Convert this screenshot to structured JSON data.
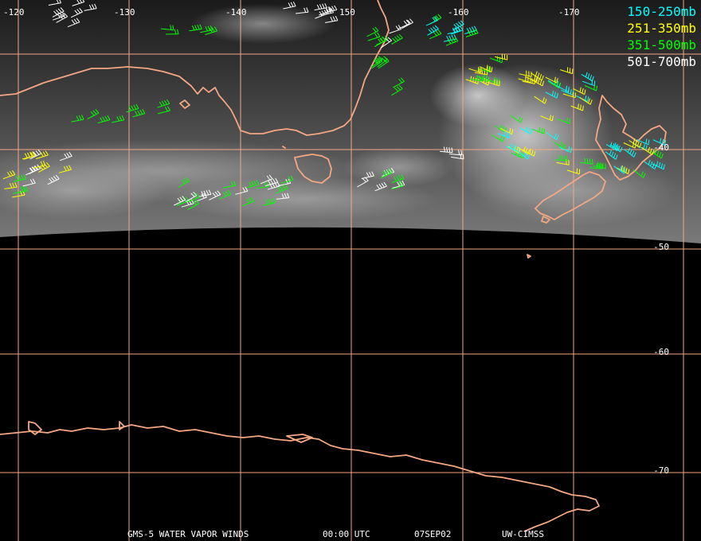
{
  "legend": [
    {
      "label": "150-250mb",
      "color": "#00ffff"
    },
    {
      "label": "251-350mb",
      "color": "#ffff00"
    },
    {
      "label": "351-500mb",
      "color": "#00ff00"
    },
    {
      "label": "501-700mb",
      "color": "#ffffff"
    }
  ],
  "longitude_labels": [
    "-120",
    "-130",
    "-140",
    "150",
    "-160",
    "-170"
  ],
  "latitude_labels": [
    "-40",
    "-50",
    "-60",
    "-70"
  ],
  "footer": {
    "product": "GMS-5 WATER VAPOR WINDS",
    "time": "00:00 UTC",
    "date": "07SEP02",
    "source": "UW-CIMSS"
  },
  "colors": {
    "background": "#000000",
    "grid": "#f4a783",
    "coastline": "#f4a783"
  }
}
